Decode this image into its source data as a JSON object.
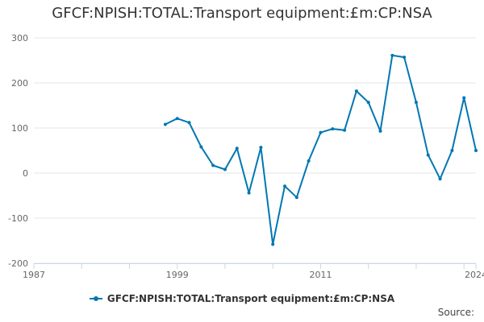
{
  "title": "GFCF:NPISH:TOTAL:Transport equipment:£m:CP:NSA",
  "legend_label": "GFCF:NPISH:TOTAL:Transport equipment:£m:CP:NSA",
  "source_label": "Source:",
  "colors": {
    "series": "#0077b3",
    "grid": "#e6e6e6",
    "axis": "#ccd6eb"
  },
  "chart_data": {
    "type": "line",
    "title": "GFCF:NPISH:TOTAL:Transport equipment:£m:CP:NSA",
    "xlabel": "",
    "ylabel": "",
    "xlim": [
      1987,
      2024
    ],
    "ylim": [
      -200,
      300
    ],
    "x_ticks": [
      1987,
      1999,
      2011,
      2024
    ],
    "y_ticks": [
      -200,
      -100,
      0,
      100,
      200,
      300
    ],
    "grid": true,
    "legend": "bottom-center",
    "series": [
      {
        "name": "GFCF:NPISH:TOTAL:Transport equipment:£m:CP:NSA",
        "x": [
          1998,
          1999,
          2000,
          2001,
          2002,
          2003,
          2004,
          2005,
          2006,
          2007,
          2008,
          2009,
          2010,
          2011,
          2012,
          2013,
          2014,
          2015,
          2016,
          2017,
          2018,
          2019,
          2020,
          2021,
          2022,
          2023,
          2024
        ],
        "y": [
          108,
          121,
          112,
          58,
          17,
          8,
          55,
          -44,
          57,
          -158,
          -29,
          -54,
          27,
          90,
          98,
          95,
          182,
          157,
          93,
          261,
          257,
          157,
          40,
          -13,
          50,
          167,
          50
        ]
      }
    ]
  }
}
